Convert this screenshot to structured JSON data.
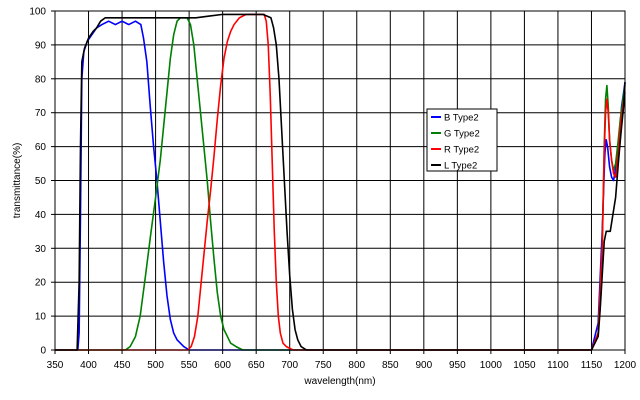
{
  "chart_data": {
    "type": "line",
    "title": "",
    "xlabel": "wavelength(nm)",
    "ylabel": "transmittance(%)",
    "xlim": [
      350,
      1200
    ],
    "ylim": [
      0,
      100
    ],
    "xticks": [
      350,
      400,
      450,
      500,
      550,
      600,
      650,
      700,
      750,
      800,
      850,
      900,
      950,
      1000,
      1050,
      1100,
      1150,
      1200
    ],
    "yticks": [
      0,
      10,
      20,
      30,
      40,
      50,
      60,
      70,
      80,
      90,
      100
    ],
    "grid": true,
    "legend_position": "right",
    "series": [
      {
        "name": "B Type2",
        "color": "#0000ff",
        "points": [
          [
            350,
            0
          ],
          [
            384,
            0
          ],
          [
            386,
            5
          ],
          [
            388,
            40
          ],
          [
            390,
            80
          ],
          [
            393,
            88
          ],
          [
            398,
            91
          ],
          [
            405,
            93
          ],
          [
            412,
            95
          ],
          [
            420,
            96
          ],
          [
            430,
            97
          ],
          [
            440,
            96
          ],
          [
            450,
            97
          ],
          [
            460,
            96
          ],
          [
            470,
            97
          ],
          [
            478,
            96
          ],
          [
            482,
            92
          ],
          [
            487,
            85
          ],
          [
            492,
            72
          ],
          [
            497,
            60
          ],
          [
            502,
            50
          ],
          [
            507,
            38
          ],
          [
            512,
            26
          ],
          [
            517,
            16
          ],
          [
            522,
            9
          ],
          [
            527,
            5
          ],
          [
            532,
            3
          ],
          [
            537,
            2
          ],
          [
            542,
            1
          ],
          [
            550,
            0
          ],
          [
            1150,
            0
          ],
          [
            1160,
            8
          ],
          [
            1166,
            35
          ],
          [
            1170,
            58
          ],
          [
            1172,
            62
          ],
          [
            1174,
            60
          ],
          [
            1177,
            54
          ],
          [
            1180,
            51
          ],
          [
            1183,
            50
          ],
          [
            1187,
            55
          ],
          [
            1190,
            60
          ],
          [
            1192,
            65
          ],
          [
            1195,
            72
          ],
          [
            1198,
            76
          ],
          [
            1200,
            79
          ]
        ]
      },
      {
        "name": "G Type2",
        "color": "#008000",
        "points": [
          [
            350,
            0
          ],
          [
            455,
            0
          ],
          [
            462,
            1
          ],
          [
            470,
            4
          ],
          [
            477,
            10
          ],
          [
            485,
            22
          ],
          [
            492,
            33
          ],
          [
            500,
            45
          ],
          [
            507,
            56
          ],
          [
            512,
            66
          ],
          [
            517,
            76
          ],
          [
            522,
            86
          ],
          [
            527,
            93
          ],
          [
            532,
            97
          ],
          [
            537,
            98
          ],
          [
            542,
            98
          ],
          [
            547,
            98
          ],
          [
            552,
            96
          ],
          [
            557,
            90
          ],
          [
            562,
            80
          ],
          [
            567,
            70
          ],
          [
            572,
            60
          ],
          [
            577,
            50
          ],
          [
            582,
            38
          ],
          [
            587,
            27
          ],
          [
            592,
            17
          ],
          [
            597,
            10
          ],
          [
            602,
            6
          ],
          [
            607,
            4
          ],
          [
            612,
            2
          ],
          [
            620,
            1
          ],
          [
            630,
            0
          ],
          [
            1150,
            0
          ],
          [
            1160,
            5
          ],
          [
            1166,
            30
          ],
          [
            1169,
            60
          ],
          [
            1171,
            74
          ],
          [
            1173,
            78
          ],
          [
            1175,
            72
          ],
          [
            1177,
            62
          ],
          [
            1180,
            56
          ],
          [
            1183,
            53
          ],
          [
            1186,
            55
          ],
          [
            1190,
            62
          ],
          [
            1193,
            68
          ],
          [
            1197,
            74
          ],
          [
            1200,
            78
          ]
        ]
      },
      {
        "name": "R Type2",
        "color": "#ff0000",
        "points": [
          [
            350,
            0
          ],
          [
            548,
            0
          ],
          [
            553,
            1
          ],
          [
            558,
            4
          ],
          [
            563,
            10
          ],
          [
            567,
            18
          ],
          [
            572,
            28
          ],
          [
            577,
            38
          ],
          [
            582,
            47
          ],
          [
            587,
            57
          ],
          [
            592,
            68
          ],
          [
            597,
            78
          ],
          [
            602,
            86
          ],
          [
            607,
            91
          ],
          [
            612,
            94
          ],
          [
            617,
            96
          ],
          [
            625,
            98
          ],
          [
            635,
            99
          ],
          [
            645,
            99
          ],
          [
            655,
            99
          ],
          [
            662,
            99
          ],
          [
            665,
            97
          ],
          [
            668,
            90
          ],
          [
            671,
            75
          ],
          [
            674,
            55
          ],
          [
            677,
            35
          ],
          [
            680,
            20
          ],
          [
            683,
            10
          ],
          [
            686,
            5
          ],
          [
            690,
            2
          ],
          [
            695,
            1
          ],
          [
            705,
            0
          ],
          [
            1150,
            0
          ],
          [
            1160,
            5
          ],
          [
            1166,
            30
          ],
          [
            1169,
            58
          ],
          [
            1171,
            70
          ],
          [
            1173,
            74
          ],
          [
            1175,
            70
          ],
          [
            1177,
            62
          ],
          [
            1180,
            56
          ],
          [
            1183,
            52
          ],
          [
            1186,
            51
          ],
          [
            1190,
            58
          ],
          [
            1193,
            66
          ],
          [
            1197,
            72
          ],
          [
            1200,
            76
          ]
        ]
      },
      {
        "name": "L Type2",
        "color": "#000000",
        "points": [
          [
            350,
            0
          ],
          [
            383,
            0
          ],
          [
            386,
            20
          ],
          [
            388,
            60
          ],
          [
            390,
            85
          ],
          [
            394,
            89
          ],
          [
            400,
            92
          ],
          [
            407,
            94
          ],
          [
            412,
            95
          ],
          [
            418,
            97
          ],
          [
            425,
            98
          ],
          [
            440,
            98
          ],
          [
            460,
            98
          ],
          [
            500,
            98
          ],
          [
            540,
            98
          ],
          [
            560,
            98
          ],
          [
            580,
            98.5
          ],
          [
            600,
            99
          ],
          [
            630,
            99
          ],
          [
            660,
            99
          ],
          [
            672,
            98
          ],
          [
            676,
            95
          ],
          [
            680,
            90
          ],
          [
            684,
            80
          ],
          [
            688,
            65
          ],
          [
            692,
            50
          ],
          [
            696,
            35
          ],
          [
            700,
            22
          ],
          [
            704,
            12
          ],
          [
            708,
            6
          ],
          [
            712,
            3
          ],
          [
            717,
            1
          ],
          [
            725,
            0
          ],
          [
            1150,
            0
          ],
          [
            1160,
            4
          ],
          [
            1163,
            12
          ],
          [
            1166,
            22
          ],
          [
            1169,
            32
          ],
          [
            1172,
            35
          ],
          [
            1178,
            35
          ],
          [
            1182,
            40
          ],
          [
            1186,
            45
          ],
          [
            1190,
            55
          ],
          [
            1194,
            64
          ],
          [
            1198,
            72
          ],
          [
            1200,
            79
          ]
        ]
      }
    ]
  }
}
